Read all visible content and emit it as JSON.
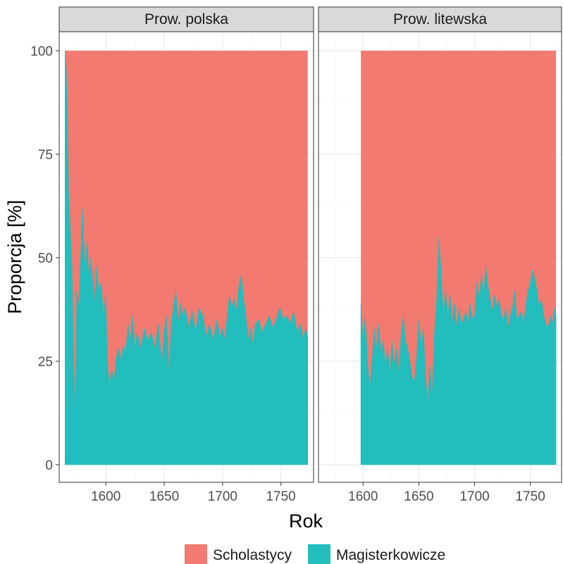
{
  "chart_data": {
    "type": "area",
    "stacked_percent": true,
    "xlabel": "Rok",
    "ylabel": "Proporcja [%]",
    "ylim": [
      0,
      100
    ],
    "yticks": [
      0,
      25,
      50,
      75,
      100
    ],
    "xlim": [
      1560,
      1778
    ],
    "xticks": [
      1600,
      1650,
      1700,
      1750
    ],
    "grid": true,
    "legend_position": "bottom",
    "colors": {
      "Scholastycy": "#F27A70",
      "Magisterkowicze": "#22BDBD"
    },
    "legend": [
      "Scholastycy",
      "Magisterkowicze"
    ],
    "panels": [
      {
        "strip": "Prow. polska",
        "x_range": [
          1565,
          1773
        ],
        "magisterkowicze": [
          [
            1565,
            100
          ],
          [
            1566,
            96
          ],
          [
            1567,
            85
          ],
          [
            1568,
            66
          ],
          [
            1569,
            60
          ],
          [
            1570,
            53
          ],
          [
            1571,
            48
          ],
          [
            1572,
            30
          ],
          [
            1573,
            20
          ],
          [
            1574,
            12
          ],
          [
            1575,
            42
          ],
          [
            1577,
            38
          ],
          [
            1578,
            47
          ],
          [
            1580,
            62
          ],
          [
            1581,
            54
          ],
          [
            1582,
            48
          ],
          [
            1584,
            54
          ],
          [
            1585,
            46
          ],
          [
            1587,
            50
          ],
          [
            1588,
            42
          ],
          [
            1589,
            47
          ],
          [
            1590,
            38
          ],
          [
            1592,
            48
          ],
          [
            1594,
            42
          ],
          [
            1596,
            44
          ],
          [
            1598,
            36
          ],
          [
            1600,
            41
          ],
          [
            1601,
            28
          ],
          [
            1602,
            22
          ],
          [
            1603,
            19
          ],
          [
            1605,
            23
          ],
          [
            1607,
            20
          ],
          [
            1609,
            26
          ],
          [
            1611,
            28
          ],
          [
            1613,
            25
          ],
          [
            1615,
            29
          ],
          [
            1617,
            27
          ],
          [
            1619,
            34
          ],
          [
            1621,
            30
          ],
          [
            1623,
            36
          ],
          [
            1625,
            28
          ],
          [
            1627,
            32
          ],
          [
            1630,
            28
          ],
          [
            1633,
            33
          ],
          [
            1636,
            30
          ],
          [
            1639,
            32
          ],
          [
            1642,
            28
          ],
          [
            1645,
            34
          ],
          [
            1648,
            24
          ],
          [
            1650,
            32
          ],
          [
            1652,
            36
          ],
          [
            1654,
            22
          ],
          [
            1656,
            34
          ],
          [
            1658,
            38
          ],
          [
            1660,
            42
          ],
          [
            1662,
            34
          ],
          [
            1664,
            39
          ],
          [
            1666,
            36
          ],
          [
            1668,
            38
          ],
          [
            1671,
            33
          ],
          [
            1674,
            37
          ],
          [
            1677,
            32
          ],
          [
            1680,
            38
          ],
          [
            1683,
            36
          ],
          [
            1686,
            31
          ],
          [
            1689,
            34
          ],
          [
            1692,
            30
          ],
          [
            1695,
            35
          ],
          [
            1698,
            31
          ],
          [
            1700,
            33
          ],
          [
            1702,
            30
          ],
          [
            1704,
            36
          ],
          [
            1706,
            41
          ],
          [
            1708,
            38
          ],
          [
            1710,
            40
          ],
          [
            1712,
            37
          ],
          [
            1714,
            43
          ],
          [
            1716,
            46
          ],
          [
            1718,
            40
          ],
          [
            1720,
            36
          ],
          [
            1722,
            30
          ],
          [
            1724,
            33
          ],
          [
            1726,
            29
          ],
          [
            1728,
            34
          ],
          [
            1731,
            35
          ],
          [
            1734,
            32
          ],
          [
            1737,
            34
          ],
          [
            1740,
            36
          ],
          [
            1743,
            33
          ],
          [
            1746,
            35
          ],
          [
            1749,
            38
          ],
          [
            1752,
            35
          ],
          [
            1755,
            36
          ],
          [
            1758,
            34
          ],
          [
            1761,
            37
          ],
          [
            1764,
            32
          ],
          [
            1767,
            34
          ],
          [
            1769,
            30
          ],
          [
            1771,
            33
          ],
          [
            1773,
            31
          ]
        ]
      },
      {
        "strip": "Prow. litewska",
        "x_range": [
          1598,
          1773
        ],
        "magisterkowicze": [
          [
            1598,
            39
          ],
          [
            1600,
            30
          ],
          [
            1602,
            36
          ],
          [
            1604,
            25
          ],
          [
            1606,
            18
          ],
          [
            1608,
            25
          ],
          [
            1610,
            33
          ],
          [
            1612,
            28
          ],
          [
            1614,
            34
          ],
          [
            1616,
            27
          ],
          [
            1618,
            30
          ],
          [
            1620,
            24
          ],
          [
            1622,
            28
          ],
          [
            1624,
            22
          ],
          [
            1626,
            30
          ],
          [
            1628,
            24
          ],
          [
            1630,
            28
          ],
          [
            1632,
            22
          ],
          [
            1634,
            31
          ],
          [
            1636,
            36
          ],
          [
            1638,
            30
          ],
          [
            1640,
            28
          ],
          [
            1642,
            25
          ],
          [
            1644,
            21
          ],
          [
            1646,
            20
          ],
          [
            1648,
            26
          ],
          [
            1650,
            35
          ],
          [
            1652,
            29
          ],
          [
            1654,
            33
          ],
          [
            1656,
            21
          ],
          [
            1658,
            15
          ],
          [
            1660,
            24
          ],
          [
            1662,
            17
          ],
          [
            1664,
            32
          ],
          [
            1666,
            40
          ],
          [
            1668,
            55
          ],
          [
            1670,
            46
          ],
          [
            1672,
            36
          ],
          [
            1674,
            42
          ],
          [
            1676,
            36
          ],
          [
            1678,
            41
          ],
          [
            1680,
            34
          ],
          [
            1682,
            39
          ],
          [
            1684,
            33
          ],
          [
            1686,
            38
          ],
          [
            1688,
            34
          ],
          [
            1690,
            35
          ],
          [
            1692,
            37
          ],
          [
            1694,
            34
          ],
          [
            1696,
            39
          ],
          [
            1698,
            35
          ],
          [
            1700,
            36
          ],
          [
            1702,
            44
          ],
          [
            1704,
            40
          ],
          [
            1706,
            46
          ],
          [
            1708,
            41
          ],
          [
            1710,
            48
          ],
          [
            1712,
            43
          ],
          [
            1714,
            40
          ],
          [
            1716,
            37
          ],
          [
            1718,
            41
          ],
          [
            1720,
            38
          ],
          [
            1722,
            40
          ],
          [
            1724,
            36
          ],
          [
            1726,
            35
          ],
          [
            1728,
            38
          ],
          [
            1730,
            33
          ],
          [
            1732,
            36
          ],
          [
            1734,
            38
          ],
          [
            1736,
            42
          ],
          [
            1738,
            35
          ],
          [
            1740,
            36
          ],
          [
            1742,
            37
          ],
          [
            1744,
            34
          ],
          [
            1746,
            39
          ],
          [
            1748,
            42
          ],
          [
            1750,
            44
          ],
          [
            1752,
            47
          ],
          [
            1754,
            45
          ],
          [
            1756,
            42
          ],
          [
            1758,
            38
          ],
          [
            1760,
            40
          ],
          [
            1762,
            36
          ],
          [
            1764,
            34
          ],
          [
            1766,
            33
          ],
          [
            1768,
            36
          ],
          [
            1770,
            34
          ],
          [
            1772,
            38
          ],
          [
            1773,
            36
          ]
        ]
      }
    ]
  }
}
